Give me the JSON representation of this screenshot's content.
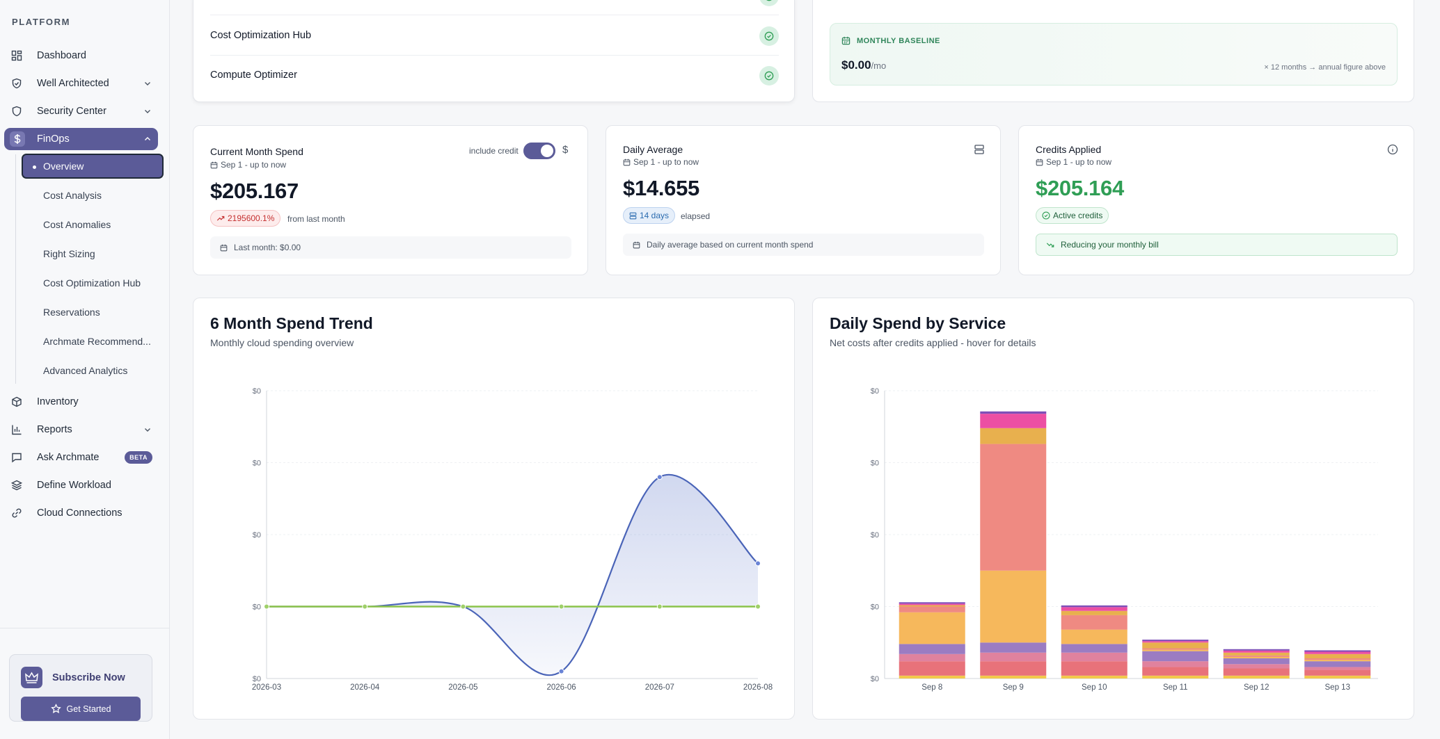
{
  "sidebar": {
    "section_label": "PLATFORM",
    "items": [
      {
        "label": "Dashboard",
        "icon": "dashboard-icon"
      },
      {
        "label": "Well Architected",
        "icon": "shield-check-icon"
      },
      {
        "label": "Security Center",
        "icon": "shield-icon"
      },
      {
        "label": "FinOps",
        "icon": "dollar-icon"
      },
      {
        "label": "Inventory",
        "icon": "box-icon"
      },
      {
        "label": "Reports",
        "icon": "bar-chart-icon"
      },
      {
        "label": "Ask Archmate",
        "icon": "chat-icon",
        "badge": "BETA"
      },
      {
        "label": "Define Workload",
        "icon": "layers-icon"
      },
      {
        "label": "Cloud Connections",
        "icon": "link-icon"
      }
    ],
    "finops_subitems": [
      "Overview",
      "Cost Analysis",
      "Cost Anomalies",
      "Right Sizing",
      "Cost Optimization Hub",
      "Reservations",
      "Archmate Recommend...",
      "Advanced Analytics"
    ],
    "subscribe": {
      "title": "Subscribe Now",
      "button": "Get Started"
    }
  },
  "services": {
    "rows": [
      "Cost Optimization Hub",
      "Compute Optimizer"
    ]
  },
  "baseline": {
    "label": "MONTHLY BASELINE",
    "value": "$0.00",
    "unit": "/mo",
    "note": "× 12 months → annual figure above"
  },
  "kpi": {
    "current": {
      "title": "Current Month Spend",
      "date": "Sep 1 - up to now",
      "value": "$205.167",
      "toggle_label": "include credit",
      "toggle_on": true,
      "change": "2195600.1%",
      "change_suffix": "from last month",
      "footer": "Last month: $0.00"
    },
    "daily": {
      "title": "Daily Average",
      "date": "Sep 1 - up to now",
      "value": "$14.655",
      "days": "14 days",
      "days_suffix": "elapsed",
      "footer": "Daily average based on current month spend"
    },
    "credits": {
      "title": "Credits Applied",
      "date": "Sep 1 - up to now",
      "value": "$205.164",
      "badge": "Active credits",
      "footer": "Reducing your monthly bill"
    }
  },
  "colors": {
    "accent": "#5b5b98",
    "green": "#2f9e55",
    "red": "#c53030",
    "blue": "#2b6cb0",
    "line_blue": "#4a64b8",
    "line_green": "#8bc34a"
  },
  "charts": {
    "trend": {
      "title": "6 Month Spend Trend",
      "subtitle": "Monthly cloud spending overview"
    },
    "daily": {
      "title": "Daily Spend by Service",
      "subtitle": "Net costs after credits applied - hover for details"
    }
  },
  "chart_data": [
    {
      "type": "area",
      "title": "6 Month Spend Trend",
      "categories": [
        "2026-03",
        "2026-04",
        "2026-05",
        "2026-06",
        "2026-07",
        "2026-08"
      ],
      "y_tick_labels": [
        "$0",
        "$0",
        "$0",
        "$0",
        "$0"
      ],
      "series": [
        {
          "values": [
            0,
            0,
            0,
            -0.18,
            0.36,
            0.12
          ],
          "color": "#4a64b8"
        },
        {
          "values": [
            0,
            0,
            0,
            0,
            0,
            0
          ],
          "color": "#8bc34a"
        }
      ],
      "ylim": [
        -0.2,
        0.6
      ],
      "grid": true
    },
    {
      "type": "bar",
      "stacked": true,
      "title": "Daily Spend by Service",
      "categories": [
        "Sep 8",
        "Sep 9",
        "Sep 10",
        "Sep 11",
        "Sep 12",
        "Sep 13"
      ],
      "y_tick_labels": [
        "$0",
        "$0",
        "$0",
        "$0",
        "$0"
      ],
      "ylim": [
        0,
        100
      ],
      "series": [
        {
          "color": "#f2c94c",
          "values": [
            1,
            1,
            1,
            1,
            1,
            1
          ]
        },
        {
          "color": "#e8727a",
          "values": [
            5,
            5,
            5,
            3,
            2.5,
            2
          ]
        },
        {
          "color": "#e0829e",
          "values": [
            2.5,
            3,
            3,
            2,
            1.5,
            1
          ]
        },
        {
          "color": "#9b7cc2",
          "values": [
            3.5,
            3.5,
            3,
            3.5,
            2,
            2
          ]
        },
        {
          "color": "#f6b85c",
          "values": [
            11,
            25,
            5,
            0.5,
            0.5,
            0.5
          ]
        },
        {
          "color": "#ef8a82",
          "values": [
            2,
            44,
            5,
            0.5,
            0.5,
            0.5
          ]
        },
        {
          "color": "#e8b04e",
          "values": [
            0.5,
            5.5,
            1.5,
            2,
            1,
            1.5
          ]
        },
        {
          "color": "#ec4fa3",
          "values": [
            0.5,
            5,
            1.3,
            0.5,
            0.7,
            0.8
          ]
        },
        {
          "color": "#7e4fb8",
          "values": [
            0.5,
            0.8,
            0.6,
            0.5,
            0.5,
            0.5
          ]
        }
      ],
      "grid": true
    }
  ]
}
